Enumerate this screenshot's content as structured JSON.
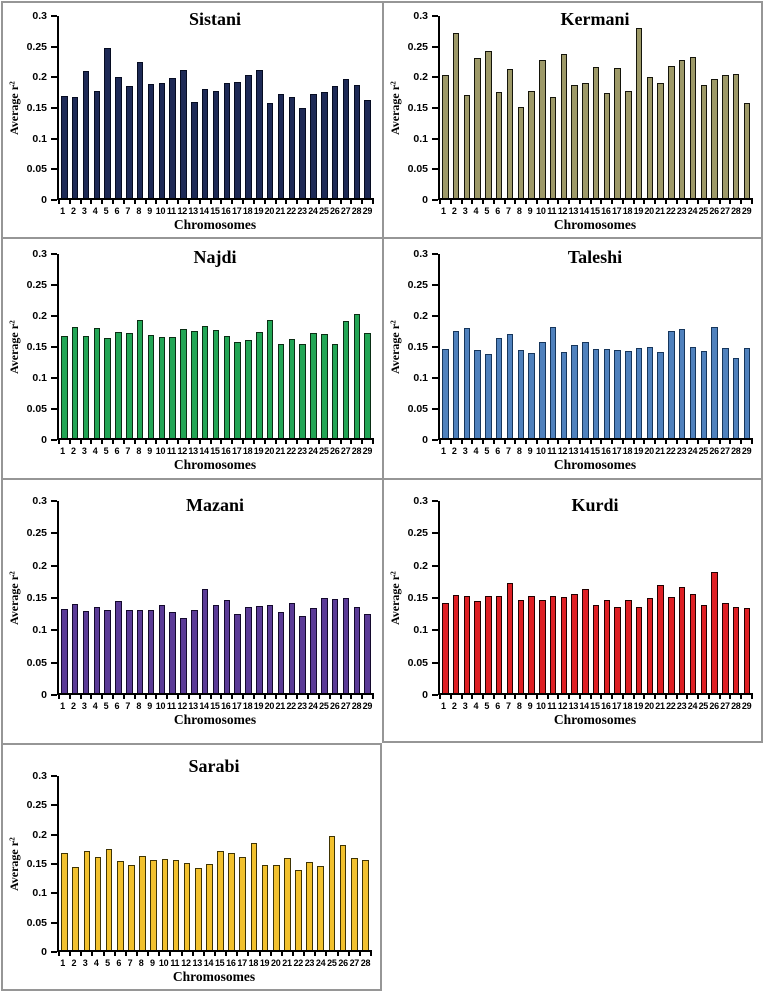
{
  "figure": {
    "background": "#ffffff",
    "panel_border_color": "#969696",
    "axis_color": "#000000"
  },
  "axis": {
    "xlabel": "Chromosomes",
    "ylabel": "Average r²",
    "ymax": 0.3,
    "yticks": [
      "0.3",
      "0.25",
      "0.2",
      "0.15",
      "0.1",
      "0.05",
      "0"
    ]
  },
  "chart_data": [
    {
      "type": "bar",
      "title": "Sistani",
      "color": "#1e2a56",
      "border_color": "#060c22",
      "xlabel": "Chromosomes",
      "ylabel": "Average r²",
      "ylim": [
        0,
        0.3
      ],
      "grid": false,
      "categories": [
        1,
        2,
        3,
        4,
        5,
        6,
        7,
        8,
        9,
        10,
        11,
        12,
        13,
        14,
        15,
        16,
        17,
        18,
        19,
        20,
        21,
        22,
        23,
        24,
        25,
        26,
        27,
        28,
        29
      ],
      "values": [
        0.168,
        0.166,
        0.21,
        0.176,
        0.247,
        0.2,
        0.184,
        0.224,
        0.188,
        0.189,
        0.197,
        0.211,
        0.158,
        0.18,
        0.177,
        0.19,
        0.191,
        0.203,
        0.211,
        0.157,
        0.172,
        0.166,
        0.148,
        0.172,
        0.174,
        0.185,
        0.196,
        0.186,
        0.161
      ]
    },
    {
      "type": "bar",
      "title": "Kermani",
      "color": "#9d9968",
      "border_color": "#14140a",
      "xlabel": "Chromosomes",
      "ylabel": "Average r²",
      "ylim": [
        0,
        0.3
      ],
      "grid": false,
      "categories": [
        1,
        2,
        3,
        4,
        5,
        6,
        7,
        8,
        9,
        10,
        11,
        12,
        13,
        14,
        15,
        16,
        17,
        18,
        19,
        20,
        21,
        22,
        23,
        24,
        25,
        26,
        27,
        28,
        29
      ],
      "values": [
        0.202,
        0.272,
        0.17,
        0.231,
        0.242,
        0.175,
        0.213,
        0.15,
        0.176,
        0.227,
        0.166,
        0.237,
        0.186,
        0.19,
        0.216,
        0.173,
        0.215,
        0.176,
        0.281,
        0.2,
        0.19,
        0.217,
        0.228,
        0.233,
        0.187,
        0.196,
        0.202,
        0.205,
        0.157
      ]
    },
    {
      "type": "bar",
      "title": "Najdi",
      "color": "#22a655",
      "border_color": "#0a2e14",
      "xlabel": "Chromosomes",
      "ylabel": "Average r²",
      "ylim": [
        0,
        0.3
      ],
      "grid": false,
      "categories": [
        1,
        2,
        3,
        4,
        5,
        6,
        7,
        8,
        9,
        10,
        11,
        12,
        13,
        14,
        15,
        16,
        17,
        18,
        19,
        20,
        21,
        22,
        23,
        24,
        25,
        26,
        27,
        28,
        29
      ],
      "values": [
        0.167,
        0.181,
        0.166,
        0.18,
        0.163,
        0.173,
        0.172,
        0.192,
        0.168,
        0.164,
        0.164,
        0.178,
        0.175,
        0.183,
        0.176,
        0.166,
        0.157,
        0.16,
        0.173,
        0.192,
        0.153,
        0.161,
        0.153,
        0.171,
        0.17,
        0.153,
        0.191,
        0.202,
        0.171
      ]
    },
    {
      "type": "bar",
      "title": "Taleshi",
      "color": "#4f81bd",
      "border_color": "#16365c",
      "xlabel": "Chromosomes",
      "ylabel": "Average r²",
      "ylim": [
        0,
        0.3
      ],
      "grid": false,
      "categories": [
        1,
        2,
        3,
        4,
        5,
        6,
        7,
        8,
        9,
        10,
        11,
        12,
        13,
        14,
        15,
        16,
        17,
        18,
        19,
        20,
        21,
        22,
        23,
        24,
        25,
        26,
        27,
        28,
        29
      ],
      "values": [
        0.145,
        0.174,
        0.179,
        0.144,
        0.137,
        0.163,
        0.17,
        0.144,
        0.138,
        0.157,
        0.181,
        0.141,
        0.151,
        0.156,
        0.145,
        0.145,
        0.143,
        0.142,
        0.147,
        0.149,
        0.14,
        0.174,
        0.178,
        0.148,
        0.142,
        0.181,
        0.146,
        0.131,
        0.147
      ]
    },
    {
      "type": "bar",
      "title": "Mazani",
      "color": "#5b3b97",
      "border_color": "#14092e",
      "xlabel": "Chromosomes",
      "ylabel": "Average r²",
      "ylim": [
        0,
        0.3
      ],
      "grid": false,
      "categories": [
        1,
        2,
        3,
        4,
        5,
        6,
        7,
        8,
        9,
        10,
        11,
        12,
        13,
        14,
        15,
        16,
        17,
        18,
        19,
        20,
        21,
        22,
        23,
        24,
        25,
        26,
        27,
        28,
        29
      ],
      "values": [
        0.131,
        0.139,
        0.128,
        0.135,
        0.13,
        0.144,
        0.129,
        0.13,
        0.13,
        0.138,
        0.126,
        0.118,
        0.13,
        0.163,
        0.138,
        0.146,
        0.123,
        0.134,
        0.136,
        0.138,
        0.127,
        0.141,
        0.121,
        0.133,
        0.149,
        0.147,
        0.148,
        0.135,
        0.124
      ]
    },
    {
      "type": "bar",
      "title": "Kurdi",
      "color": "#de1f24",
      "border_color": "#230000",
      "xlabel": "Chromosomes",
      "ylabel": "Average r²",
      "ylim": [
        0,
        0.3
      ],
      "grid": false,
      "categories": [
        1,
        2,
        3,
        4,
        5,
        6,
        7,
        8,
        9,
        10,
        11,
        12,
        13,
        14,
        15,
        16,
        17,
        18,
        19,
        20,
        21,
        22,
        23,
        24,
        25,
        26,
        27,
        28,
        29
      ],
      "values": [
        0.141,
        0.153,
        0.152,
        0.143,
        0.151,
        0.151,
        0.172,
        0.145,
        0.151,
        0.146,
        0.152,
        0.15,
        0.154,
        0.163,
        0.137,
        0.145,
        0.134,
        0.145,
        0.134,
        0.148,
        0.169,
        0.15,
        0.166,
        0.155,
        0.137,
        0.189,
        0.14,
        0.135,
        0.133
      ]
    },
    {
      "type": "bar",
      "title": "Sarabi",
      "color": "#f2c12e",
      "border_color": "#3f3403",
      "xlabel": "Chromosomes",
      "ylabel": "Average r²",
      "ylim": [
        0,
        0.3
      ],
      "grid": false,
      "categories": [
        1,
        2,
        3,
        4,
        5,
        6,
        7,
        8,
        9,
        10,
        11,
        12,
        13,
        14,
        15,
        16,
        17,
        18,
        19,
        20,
        21,
        22,
        23,
        24,
        25,
        26,
        27,
        28
      ],
      "values": [
        0.168,
        0.143,
        0.17,
        0.16,
        0.175,
        0.153,
        0.147,
        0.162,
        0.156,
        0.157,
        0.155,
        0.15,
        0.141,
        0.149,
        0.171,
        0.167,
        0.16,
        0.185,
        0.147,
        0.146,
        0.159,
        0.138,
        0.152,
        0.145,
        0.197,
        0.181,
        0.159,
        0.156
      ]
    }
  ]
}
